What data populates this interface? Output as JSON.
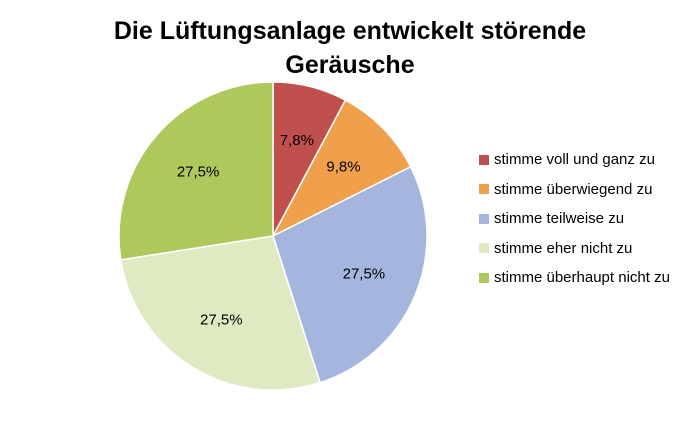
{
  "chart_data": {
    "type": "pie",
    "title_lines": [
      "Die Lüftungsanlage entwickelt störende",
      "Geräusche"
    ],
    "slices": [
      {
        "name": "stimme voll und ganz zu",
        "value": 7.8,
        "label": "7,8%",
        "color": "#c0504d"
      },
      {
        "name": "stimme überwiegend zu",
        "value": 9.8,
        "label": "9,8%",
        "color": "#f0a04b"
      },
      {
        "name": "stimme teilweise zu",
        "value": 27.5,
        "label": "27,5%",
        "color": "#a4b6de"
      },
      {
        "name": "stimme eher nicht zu",
        "value": 27.5,
        "label": "27,5%",
        "color": "#dfeac2"
      },
      {
        "name": "stimme überhaupt nicht zu",
        "value": 27.5,
        "label": "27,5%",
        "color": "#afc85c"
      }
    ],
    "start": "top, clockwise",
    "legend_position": "right"
  }
}
